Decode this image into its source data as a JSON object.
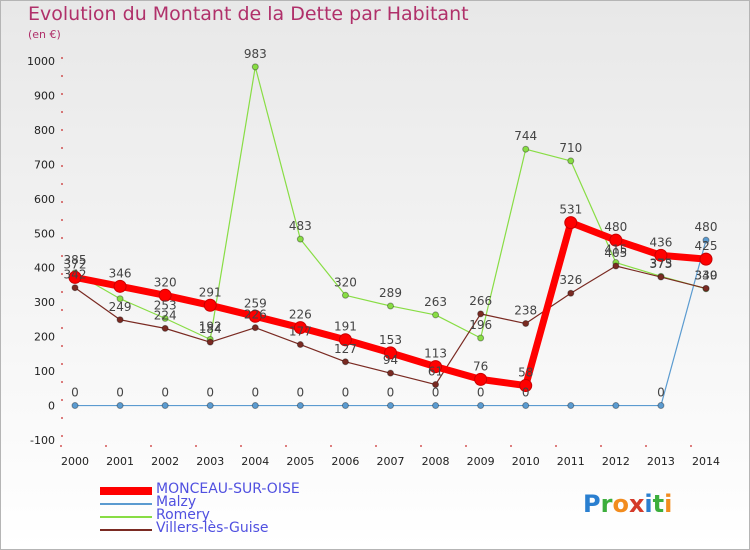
{
  "header": {
    "title": "Evolution du Montant de la Dette par Habitant",
    "subtitle": "(en €)"
  },
  "logo": {
    "letters": [
      "P",
      "r",
      "o",
      "x",
      "i",
      "t",
      "i"
    ],
    "colors": [
      "#2a7fd0",
      "#3cae3c",
      "#f28c1e",
      "#d43a2a",
      "#2a7fd0",
      "#3cae3c",
      "#f28c1e"
    ]
  },
  "chart_data": {
    "type": "line",
    "title": "Evolution du Montant de la Dette par Habitant",
    "subtitle": "(en €)",
    "x": [
      "2000",
      "2001",
      "2002",
      "2003",
      "2004",
      "2005",
      "2006",
      "2007",
      "2008",
      "2009",
      "2010",
      "2011",
      "2012",
      "2013",
      "2014"
    ],
    "ylim": [
      -100,
      1000
    ],
    "yticks": [
      -100,
      0,
      100,
      200,
      300,
      400,
      500,
      600,
      700,
      800,
      900,
      1000
    ],
    "grid": false,
    "legend_position": "bottom-left",
    "series": [
      {
        "name": "MONCEAU-SUR-OISE",
        "color": "#ff0000",
        "values": [
          372,
          346,
          320,
          291,
          259,
          226,
          191,
          153,
          113,
          76,
          58,
          531,
          480,
          436,
          425
        ]
      },
      {
        "name": "Malzy",
        "color": "#5b9bd0",
        "values": [
          0,
          0,
          0,
          0,
          0,
          0,
          0,
          0,
          0,
          0,
          0,
          0,
          0,
          0,
          480
        ]
      },
      {
        "name": "Romery",
        "color": "#88dd44",
        "values": [
          385,
          310,
          253,
          192,
          983,
          483,
          320,
          289,
          263,
          196,
          744,
          710,
          415,
          375,
          339
        ]
      },
      {
        "name": "Villers-lès-Guise",
        "color": "#7a2a22",
        "values": [
          342,
          249,
          224,
          184,
          226,
          177,
          127,
          94,
          61,
          266,
          238,
          326,
          405,
          373,
          340
        ]
      }
    ],
    "data_labels": {
      "MONCEAU-SUR-OISE": [
        "372",
        "346",
        "320",
        "291",
        "259",
        "226",
        "191",
        "153",
        "113",
        "76",
        "58",
        "531",
        "480",
        "436",
        "425"
      ],
      "Malzy": [
        "0",
        "0",
        "0",
        "0",
        "0",
        "0",
        "0",
        "0",
        "0",
        "0",
        "0",
        "",
        "",
        "0",
        "480"
      ],
      "Romery": [
        "385",
        "",
        "253",
        "192",
        "983",
        "483",
        "320",
        "289",
        "263",
        "196",
        "744",
        "710",
        "415",
        "375",
        "339"
      ],
      "Villers-lès-Guise": [
        "342",
        "249",
        "224",
        "184",
        "226",
        "177",
        "127",
        "94",
        "61",
        "266",
        "238",
        "326",
        "405",
        "373",
        "340"
      ]
    }
  }
}
